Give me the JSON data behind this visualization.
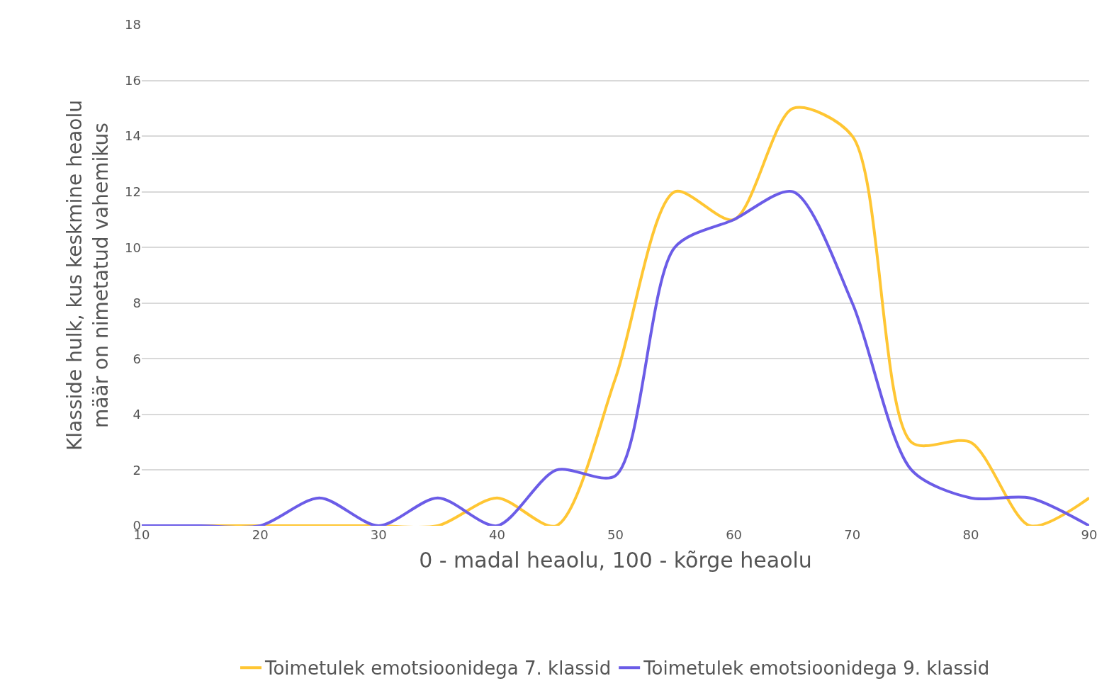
{
  "chart_data": {
    "type": "line",
    "xlabel": "0 - madal heaolu, 100 - kõrge heaolu",
    "ylabel": "Klasside hulk, kus keskmine heaolu määr on nimetatud vahemikus",
    "x": [
      10,
      15,
      20,
      25,
      30,
      35,
      40,
      45,
      50,
      55,
      60,
      65,
      70,
      75,
      80,
      85,
      90
    ],
    "series": [
      {
        "name": "Toimetulek emotsioonidega 7. klassid",
        "color": "#ffc633",
        "values": [
          0,
          0,
          0,
          0,
          0,
          0,
          1,
          0,
          5.3,
          12,
          11,
          15,
          14,
          3,
          3,
          0,
          1
        ]
      },
      {
        "name": "Toimetulek emotsioonidega 9. klassid",
        "color": "#6b5ce7",
        "values": [
          0,
          0,
          0,
          1,
          0,
          1,
          0,
          2,
          1.8,
          10,
          11,
          12,
          8,
          2,
          1,
          1,
          0
        ]
      }
    ],
    "xlim": [
      10,
      90
    ],
    "xticks": [
      10,
      20,
      30,
      40,
      50,
      60,
      70,
      80,
      90
    ],
    "ylim": [
      0,
      18
    ],
    "yticks": [
      0,
      2,
      4,
      6,
      8,
      10,
      12,
      14,
      16,
      18
    ],
    "grid": "y",
    "legend": "bottom",
    "marker": "none",
    "line_style": "solid"
  }
}
